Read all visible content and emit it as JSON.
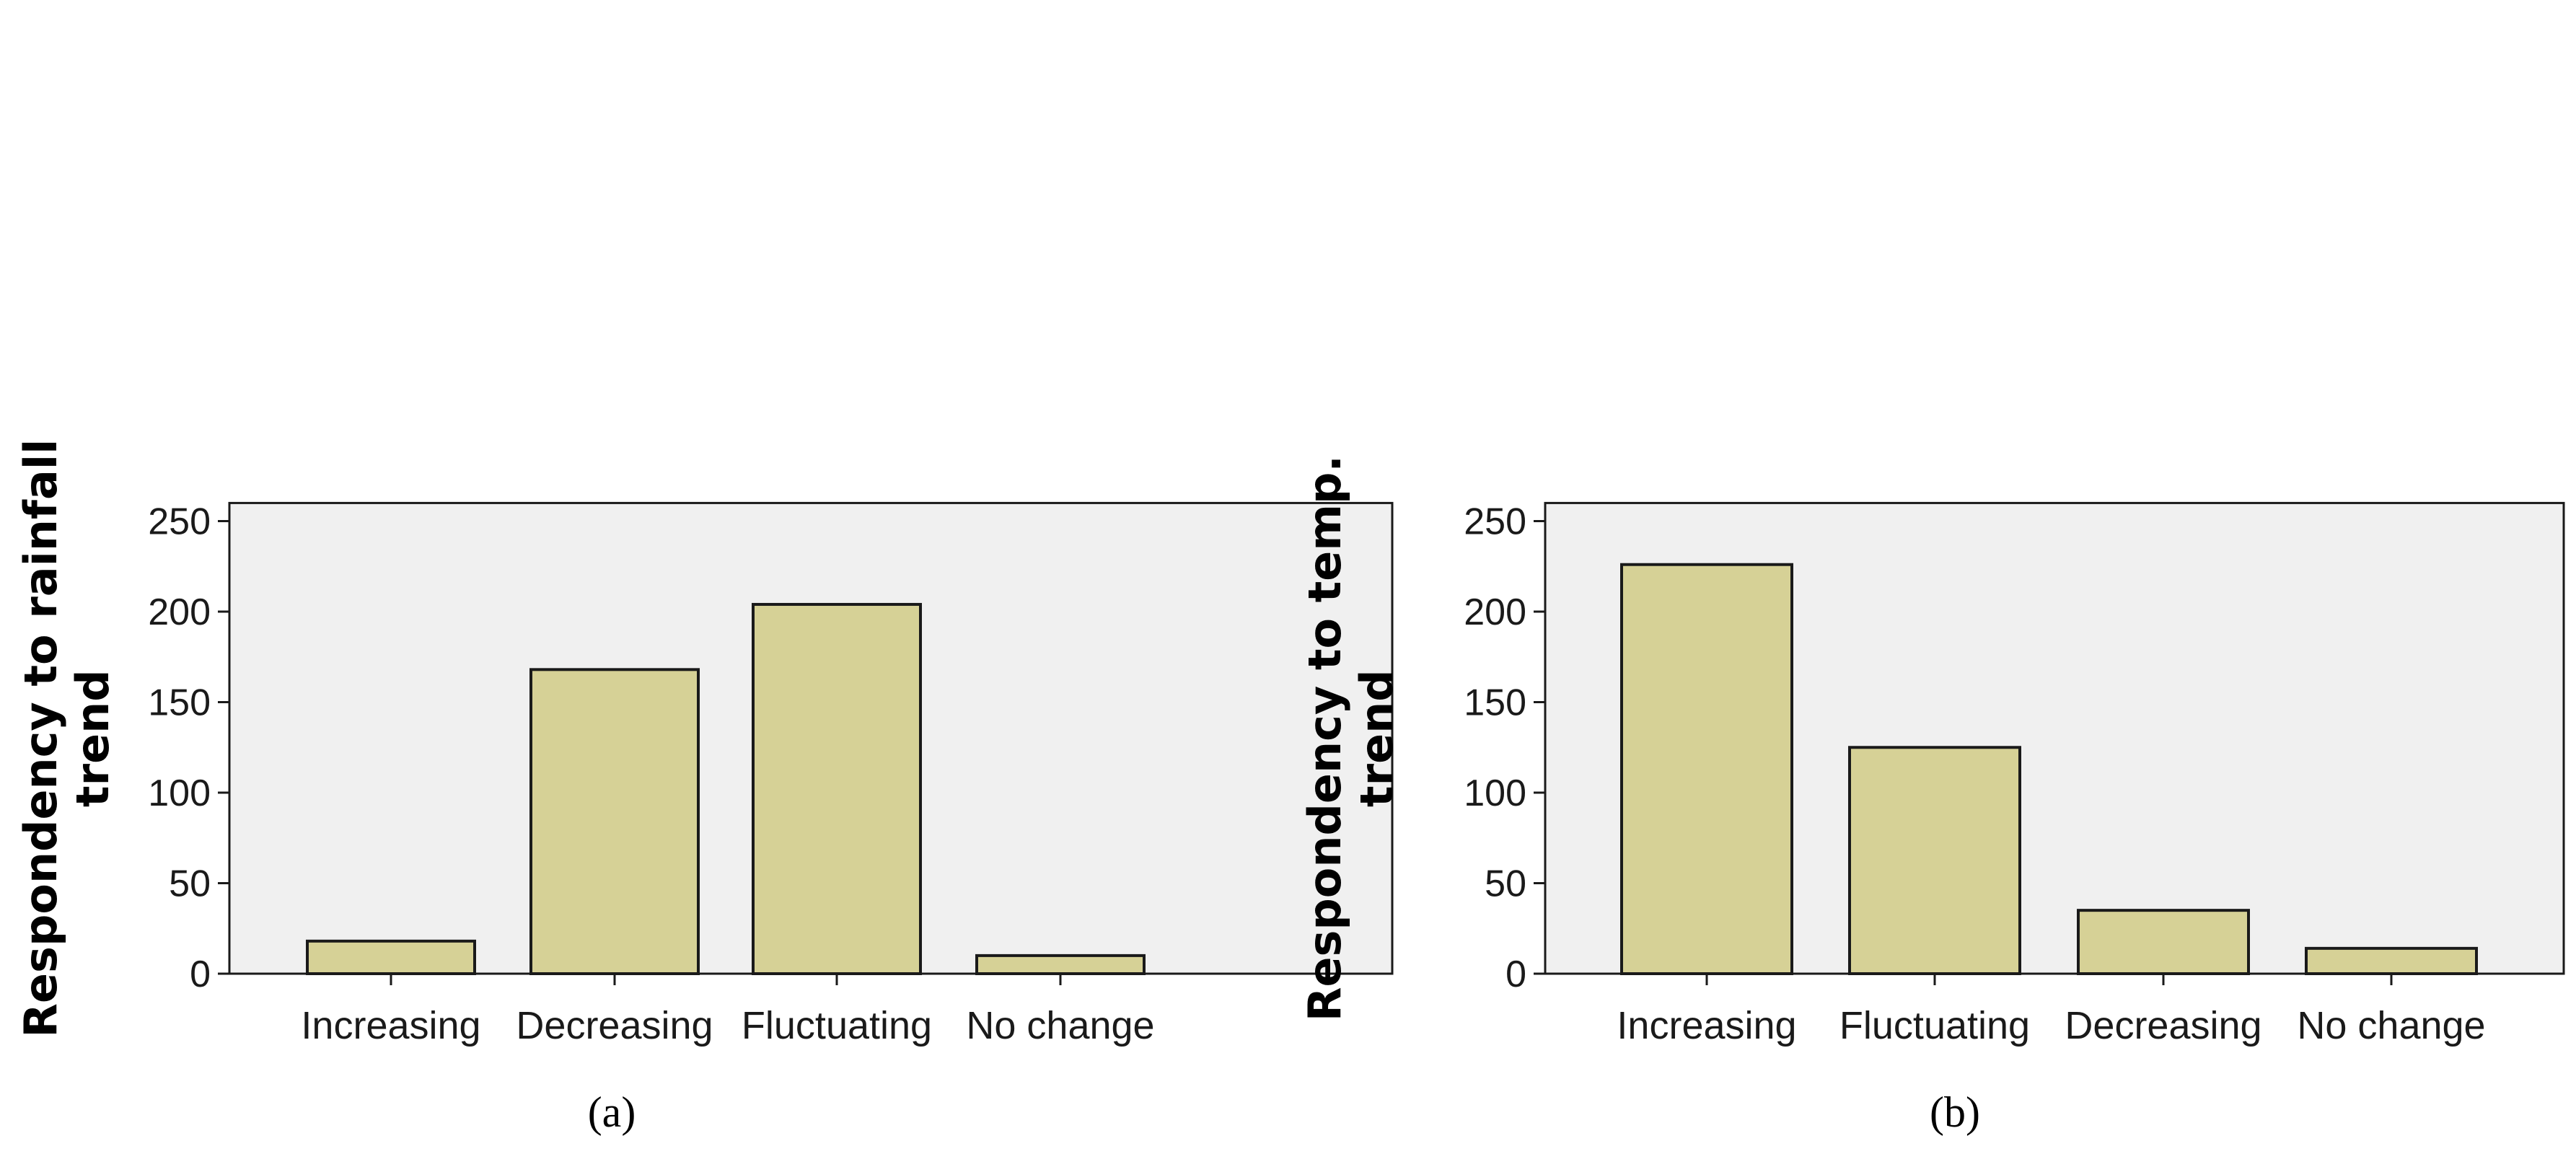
{
  "colors": {
    "plot_background": "#f0f0f0",
    "bar_fill": "#d6d196",
    "bar_stroke": "#1a1a1a",
    "axis": "#1a1a1a"
  },
  "chart_data": [
    {
      "type": "bar",
      "panel_label": "(a)",
      "title": "",
      "xlabel": "",
      "ylabel_lines": [
        "Respondency to rainfall",
        "trend"
      ],
      "categories": [
        "Increasing",
        "Decreasing",
        "Fluctuating",
        "No change"
      ],
      "values": [
        18,
        168,
        204,
        10
      ],
      "ylim": [
        0,
        260
      ],
      "yticks": [
        0,
        50,
        100,
        150,
        200,
        250
      ],
      "grid": false,
      "legend": "none"
    },
    {
      "type": "bar",
      "panel_label": "(b)",
      "title": "",
      "xlabel": "",
      "ylabel_lines": [
        "Respondency to temp.",
        "trend"
      ],
      "categories": [
        "Increasing",
        "Fluctuating",
        "Decreasing",
        "No change"
      ],
      "values": [
        226,
        125,
        35,
        14
      ],
      "ylim": [
        0,
        260
      ],
      "yticks": [
        0,
        50,
        100,
        150,
        200,
        250
      ],
      "grid": false,
      "legend": "none"
    }
  ]
}
